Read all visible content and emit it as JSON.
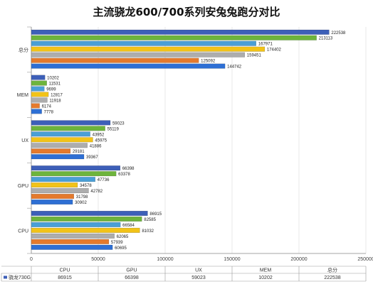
{
  "chart_data": {
    "type": "bar",
    "orientation": "horizontal",
    "title": "主流骁龙600/700系列安兔兔跑分对比",
    "categories": [
      "总分",
      "MEM",
      "UX",
      "GPU",
      "CPU"
    ],
    "series": [
      {
        "values": [
          222538,
          10202,
          59023,
          66398,
          86915
        ],
        "color": "#3d5fb8"
      },
      {
        "values": [
          213113,
          11531,
          55119,
          63378,
          82585
        ],
        "color": "#6db43c"
      },
      {
        "values": [
          167971,
          9699,
          43952,
          47736,
          66584
        ],
        "color": "#4a9fd6"
      },
      {
        "values": [
          174402,
          12817,
          45975,
          34578,
          81032
        ],
        "color": "#f2c318"
      },
      {
        "values": [
          159451,
          11918,
          41886,
          42782,
          62065
        ],
        "color": "#adadad"
      },
      {
        "values": [
          125092,
          6174,
          29181,
          31798,
          57939
        ],
        "color": "#e57a2c"
      },
      {
        "values": [
          144742,
          7778,
          39367,
          30902,
          60695
        ],
        "color": "#2e6fd4"
      }
    ],
    "xlim": [
      0,
      250000
    ],
    "xticks": [
      "0",
      "50000",
      "100000",
      "150000",
      "200000",
      "250000"
    ],
    "grid": true,
    "table": {
      "headers": [
        "CPU",
        "GPU",
        "UX",
        "MEM",
        "总分"
      ],
      "row_label": "骁龙730G",
      "row_values": [
        "86915",
        "66398",
        "59023",
        "10202",
        "222538"
      ]
    }
  }
}
